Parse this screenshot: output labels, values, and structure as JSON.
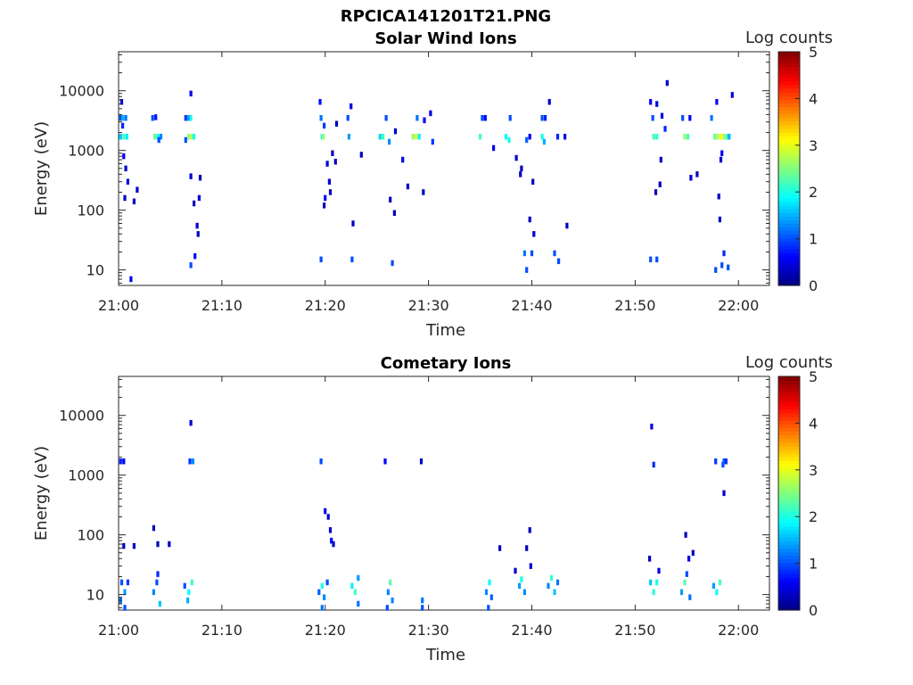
{
  "figure_title": "RPCICA141201T21.PNG",
  "colorbar": {
    "label": "Log counts",
    "ticks": [
      "0",
      "1",
      "2",
      "3",
      "4",
      "5"
    ],
    "range": [
      0,
      5
    ],
    "colormap": "jet"
  },
  "chart_data": [
    {
      "type": "heatmap",
      "title": "Solar Wind Ions",
      "xlabel": "Time",
      "ylabel": "Energy (eV)",
      "x_ticks": [
        "21:00",
        "21:10",
        "21:20",
        "21:30",
        "21:40",
        "21:50",
        "22:00"
      ],
      "x_range_minutes": [
        0,
        63
      ],
      "y_ticks": [
        "10",
        "100",
        "1000",
        "10000"
      ],
      "y_scale": "log",
      "y_range": [
        5.5,
        45000
      ],
      "cells": [
        [
          0.2,
          3500,
          1.0
        ],
        [
          0.4,
          3500,
          1.5
        ],
        [
          0.7,
          3500,
          1.2
        ],
        [
          0.2,
          1700,
          1.6
        ],
        [
          0.5,
          1700,
          2.2
        ],
        [
          0.8,
          1700,
          1.8
        ],
        [
          0.3,
          6500,
          0.6
        ],
        [
          0.4,
          2600,
          0.8
        ],
        [
          0.5,
          800,
          0.5
        ],
        [
          0.7,
          500,
          0.4
        ],
        [
          0.9,
          300,
          0.4
        ],
        [
          0.6,
          160,
          0.3
        ],
        [
          1.5,
          140,
          0.3
        ],
        [
          1.8,
          220,
          0.3
        ],
        [
          1.2,
          7,
          0.5
        ],
        [
          3.3,
          3500,
          1.0
        ],
        [
          3.5,
          1700,
          2.4
        ],
        [
          3.8,
          1700,
          1.9
        ],
        [
          4.1,
          1700,
          1.3
        ],
        [
          3.6,
          3600,
          0.7
        ],
        [
          3.9,
          1500,
          1.0
        ],
        [
          6.5,
          3500,
          0.9
        ],
        [
          6.8,
          3500,
          1.3
        ],
        [
          7.0,
          3500,
          2.0
        ],
        [
          6.8,
          1700,
          2.5
        ],
        [
          7.1,
          1700,
          2.9
        ],
        [
          7.3,
          1700,
          1.9
        ],
        [
          7.0,
          9000,
          0.5
        ],
        [
          7.0,
          370,
          0.4
        ],
        [
          7.3,
          130,
          0.3
        ],
        [
          7.0,
          12,
          1.0
        ],
        [
          7.4,
          17,
          0.6
        ],
        [
          7.6,
          55,
          0.4
        ],
        [
          7.7,
          40,
          0.3
        ],
        [
          7.8,
          160,
          0.4
        ],
        [
          7.9,
          350,
          0.3
        ],
        [
          6.5,
          1500,
          1.0
        ],
        [
          19.5,
          6500,
          0.7
        ],
        [
          19.6,
          3500,
          1.2
        ],
        [
          19.7,
          1700,
          1.8
        ],
        [
          19.8,
          1700,
          2.6
        ],
        [
          19.9,
          2600,
          0.9
        ],
        [
          20.2,
          600,
          0.4
        ],
        [
          20.4,
          300,
          0.4
        ],
        [
          20.0,
          160,
          0.6
        ],
        [
          19.9,
          120,
          0.3
        ],
        [
          20.5,
          200,
          0.3
        ],
        [
          19.6,
          15,
          1.0
        ],
        [
          22.6,
          15,
          1.0
        ],
        [
          22.7,
          60,
          0.3
        ],
        [
          21.0,
          650,
          0.3
        ],
        [
          20.7,
          900,
          0.3
        ],
        [
          21.1,
          2800,
          0.3
        ],
        [
          22.2,
          3500,
          1.0
        ],
        [
          22.3,
          1700,
          1.4
        ],
        [
          22.5,
          5500,
          0.5
        ],
        [
          23.5,
          850,
          0.3
        ],
        [
          25.3,
          1700,
          1.7
        ],
        [
          25.6,
          1700,
          2.2
        ],
        [
          25.9,
          3500,
          1.0
        ],
        [
          26.2,
          1400,
          1.3
        ],
        [
          26.5,
          13,
          1.0
        ],
        [
          26.7,
          90,
          0.3
        ],
        [
          26.3,
          150,
          0.3
        ],
        [
          27.5,
          700,
          0.5
        ],
        [
          28.0,
          250,
          0.3
        ],
        [
          26.8,
          2100,
          0.4
        ],
        [
          28.5,
          1700,
          2.6
        ],
        [
          28.8,
          1700,
          2.9
        ],
        [
          29.1,
          1700,
          1.8
        ],
        [
          28.9,
          3500,
          1.2
        ],
        [
          29.5,
          200,
          0.3
        ],
        [
          29.6,
          3200,
          0.6
        ],
        [
          30.2,
          4200,
          0.5
        ],
        [
          30.4,
          1400,
          0.9
        ],
        [
          35.0,
          1700,
          2.2
        ],
        [
          35.2,
          3500,
          1.0
        ],
        [
          35.5,
          3500,
          0.6
        ],
        [
          36.3,
          1100,
          0.5
        ],
        [
          37.5,
          1700,
          1.9
        ],
        [
          37.8,
          1500,
          2.0
        ],
        [
          37.9,
          3500,
          1.0
        ],
        [
          38.5,
          750,
          0.4
        ],
        [
          38.9,
          400,
          0.4
        ],
        [
          39.0,
          500,
          0.3
        ],
        [
          39.5,
          1500,
          1.1
        ],
        [
          39.8,
          1700,
          0.6
        ],
        [
          39.3,
          19,
          1.2
        ],
        [
          39.5,
          10,
          1.0
        ],
        [
          39.8,
          70,
          0.3
        ],
        [
          40.2,
          40,
          0.4
        ],
        [
          40.0,
          19,
          1.0
        ],
        [
          40.1,
          300,
          0.3
        ],
        [
          41.0,
          1700,
          2.0
        ],
        [
          41.2,
          1400,
          1.5
        ],
        [
          41.0,
          3500,
          1.0
        ],
        [
          41.3,
          3500,
          0.8
        ],
        [
          41.7,
          6500,
          0.4
        ],
        [
          42.2,
          19,
          1.0
        ],
        [
          42.6,
          14,
          1.0
        ],
        [
          42.5,
          1700,
          0.8
        ],
        [
          43.2,
          1700,
          0.5
        ],
        [
          43.4,
          55,
          0.3
        ],
        [
          51.5,
          6500,
          0.6
        ],
        [
          51.7,
          3500,
          1.0
        ],
        [
          51.8,
          1700,
          2.2
        ],
        [
          52.1,
          1700,
          2.1
        ],
        [
          52.1,
          6000,
          0.5
        ],
        [
          52.6,
          3800,
          0.5
        ],
        [
          52.9,
          2300,
          0.8
        ],
        [
          51.5,
          15,
          1.0
        ],
        [
          52.1,
          15,
          1.0
        ],
        [
          52.5,
          700,
          0.4
        ],
        [
          52.0,
          200,
          0.3
        ],
        [
          53.1,
          13500,
          0.4
        ],
        [
          52.4,
          270,
          0.3
        ],
        [
          54.6,
          3500,
          1.0
        ],
        [
          54.8,
          1700,
          2.6
        ],
        [
          55.1,
          1700,
          2.2
        ],
        [
          55.3,
          3500,
          0.6
        ],
        [
          55.4,
          350,
          0.4
        ],
        [
          56.0,
          400,
          0.3
        ],
        [
          57.4,
          3500,
          1.2
        ],
        [
          57.7,
          1700,
          2.4
        ],
        [
          58.0,
          1700,
          2.7
        ],
        [
          58.3,
          1700,
          3.1
        ],
        [
          58.6,
          1700,
          2.6
        ],
        [
          58.9,
          1700,
          2.2
        ],
        [
          59.1,
          1700,
          1.5
        ],
        [
          57.9,
          6500,
          0.6
        ],
        [
          58.3,
          700,
          0.4
        ],
        [
          58.1,
          170,
          0.3
        ],
        [
          58.4,
          12,
          1.0
        ],
        [
          58.6,
          19,
          0.8
        ],
        [
          59.0,
          11,
          1.0
        ],
        [
          59.4,
          8500,
          0.4
        ],
        [
          57.8,
          10,
          1.0
        ],
        [
          58.2,
          70,
          0.3
        ],
        [
          58.4,
          900,
          0.6
        ]
      ]
    },
    {
      "type": "heatmap",
      "title": "Cometary Ions",
      "xlabel": "Time",
      "ylabel": "Energy (eV)",
      "x_ticks": [
        "21:00",
        "21:10",
        "21:20",
        "21:30",
        "21:40",
        "21:50",
        "22:00"
      ],
      "x_range_minutes": [
        0,
        63
      ],
      "y_ticks": [
        "10",
        "100",
        "1000",
        "10000"
      ],
      "y_scale": "log",
      "y_range": [
        5.5,
        45000
      ],
      "cells": [
        [
          0.2,
          1700,
          0.8
        ],
        [
          0.5,
          1700,
          0.6
        ],
        [
          0.5,
          65,
          0.3
        ],
        [
          1.5,
          65,
          0.3
        ],
        [
          0.3,
          16,
          1.0
        ],
        [
          0.6,
          11,
          1.4
        ],
        [
          0.9,
          16,
          0.9
        ],
        [
          0.2,
          8,
          1.2
        ],
        [
          0.6,
          6,
          1.0
        ],
        [
          3.4,
          130,
          0.3
        ],
        [
          3.8,
          70,
          0.3
        ],
        [
          4.9,
          70,
          0.3
        ],
        [
          3.4,
          11,
          1.3
        ],
        [
          3.7,
          16,
          1.0
        ],
        [
          3.8,
          22,
          0.8
        ],
        [
          4.0,
          7,
          1.6
        ],
        [
          7.0,
          7500,
          0.4
        ],
        [
          6.9,
          1700,
          0.9
        ],
        [
          7.2,
          1700,
          1.3
        ],
        [
          6.4,
          14,
          1.0
        ],
        [
          6.8,
          11,
          1.9
        ],
        [
          7.1,
          16,
          2.2
        ],
        [
          6.7,
          8,
          1.5
        ],
        [
          19.6,
          1700,
          1.0
        ],
        [
          20.0,
          250,
          0.5
        ],
        [
          20.3,
          200,
          0.4
        ],
        [
          20.5,
          120,
          0.4
        ],
        [
          20.6,
          80,
          0.6
        ],
        [
          20.8,
          70,
          0.4
        ],
        [
          19.4,
          11,
          1.1
        ],
        [
          19.7,
          14,
          2.0
        ],
        [
          19.9,
          9,
          1.3
        ],
        [
          20.2,
          16,
          1.0
        ],
        [
          19.7,
          6,
          1.2
        ],
        [
          22.6,
          14,
          1.8
        ],
        [
          22.9,
          11,
          2.2
        ],
        [
          23.2,
          19,
          1.4
        ],
        [
          23.2,
          7,
          1.2
        ],
        [
          25.8,
          1700,
          0.6
        ],
        [
          26.1,
          11,
          1.3
        ],
        [
          26.3,
          16,
          2.3
        ],
        [
          26.5,
          8,
          1.3
        ],
        [
          26.0,
          6,
          1.0
        ],
        [
          29.3,
          1700,
          0.4
        ],
        [
          29.4,
          8,
          1.2
        ],
        [
          29.4,
          6,
          1.0
        ],
        [
          35.6,
          11,
          1.3
        ],
        [
          35.9,
          16,
          1.9
        ],
        [
          36.1,
          9,
          1.1
        ],
        [
          35.8,
          6,
          1.0
        ],
        [
          36.9,
          60,
          0.3
        ],
        [
          38.4,
          25,
          0.4
        ],
        [
          38.8,
          14,
          1.4
        ],
        [
          39.0,
          18,
          2.0
        ],
        [
          39.3,
          11,
          1.3
        ],
        [
          39.5,
          60,
          0.3
        ],
        [
          39.8,
          120,
          0.3
        ],
        [
          39.9,
          30,
          0.4
        ],
        [
          41.6,
          14,
          1.3
        ],
        [
          41.9,
          19,
          2.1
        ],
        [
          42.2,
          11,
          1.6
        ],
        [
          42.5,
          16,
          1.2
        ],
        [
          51.4,
          40,
          0.3
        ],
        [
          51.5,
          16,
          1.6
        ],
        [
          51.8,
          11,
          2.1
        ],
        [
          52.1,
          16,
          2.0
        ],
        [
          52.3,
          25,
          0.5
        ],
        [
          51.6,
          6500,
          0.5
        ],
        [
          51.8,
          1500,
          0.8
        ],
        [
          54.9,
          100,
          0.3
        ],
        [
          55.2,
          40,
          0.5
        ],
        [
          54.5,
          11,
          1.4
        ],
        [
          54.8,
          16,
          2.3
        ],
        [
          55.0,
          22,
          1.0
        ],
        [
          55.3,
          9,
          1.2
        ],
        [
          55.6,
          50,
          0.3
        ],
        [
          57.6,
          14,
          1.4
        ],
        [
          57.9,
          11,
          1.9
        ],
        [
          58.2,
          16,
          2.2
        ],
        [
          57.8,
          1700,
          0.9
        ],
        [
          58.5,
          1500,
          1.0
        ],
        [
          58.6,
          1700,
          1.1
        ],
        [
          58.8,
          1700,
          0.8
        ],
        [
          58.6,
          500,
          0.4
        ]
      ]
    }
  ]
}
